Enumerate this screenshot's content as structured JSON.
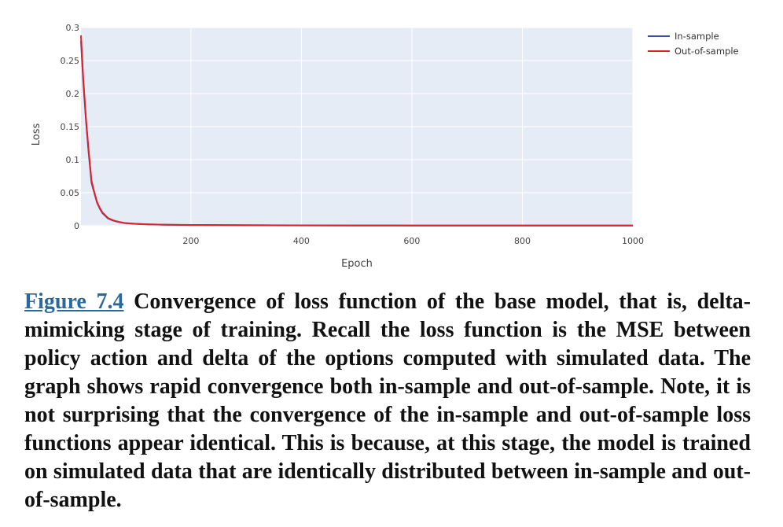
{
  "chart_data": {
    "type": "line",
    "xlabel": "Epoch",
    "ylabel": "Loss",
    "xlim": [
      1,
      1000
    ],
    "ylim": [
      0,
      0.3
    ],
    "x_ticks": [
      200,
      400,
      600,
      800,
      1000
    ],
    "y_ticks": [
      0,
      0.05,
      0.1,
      0.15,
      0.2,
      0.25,
      0.3
    ],
    "y_tick_labels": [
      "0",
      "0.05",
      "0.1",
      "0.15",
      "0.2",
      "0.25",
      "0.3"
    ],
    "grid": true,
    "legend_position": "top-right",
    "series": [
      {
        "name": "In-sample",
        "color": "#3f4fa0",
        "x": [
          1,
          5,
          10,
          15,
          20,
          25,
          30,
          35,
          40,
          50,
          60,
          70,
          80,
          100,
          120,
          150,
          200,
          300,
          400,
          500,
          600,
          700,
          800,
          900,
          1000
        ],
        "y": [
          0.28,
          0.22,
          0.16,
          0.11,
          0.065,
          0.05,
          0.035,
          0.026,
          0.019,
          0.011,
          0.0075,
          0.0055,
          0.004,
          0.0028,
          0.0022,
          0.0016,
          0.0011,
          0.0007,
          0.0005,
          0.0004,
          0.0003,
          0.0003,
          0.0002,
          0.0002,
          0.0002
        ]
      },
      {
        "name": "Out-of-sample",
        "color": "#e0202a",
        "x": [
          1,
          5,
          10,
          15,
          20,
          25,
          30,
          35,
          40,
          50,
          60,
          70,
          80,
          100,
          120,
          150,
          200,
          300,
          400,
          500,
          600,
          700,
          800,
          900,
          1000
        ],
        "y": [
          0.288,
          0.225,
          0.163,
          0.113,
          0.068,
          0.051,
          0.036,
          0.027,
          0.02,
          0.0115,
          0.008,
          0.0058,
          0.0042,
          0.003,
          0.0023,
          0.0017,
          0.0012,
          0.0008,
          0.0006,
          0.0005,
          0.0004,
          0.0003,
          0.0003,
          0.0002,
          0.0002
        ]
      }
    ]
  },
  "caption": {
    "label": "Figure 7.4",
    "text": " Convergence of loss function of the base model, that is, delta-mimicking stage of training. Recall the loss function is the MSE between policy action and delta of the options computed with simulated data. The graph shows rapid convergence both in-sample and out-of-sample. Note, it is not surprising that the convergence of the in-sample and out-of-sample loss functions appear identical. This is because, at this stage, the model is trained on simulated data that are identically distributed between in-sample and out-of-sample."
  }
}
